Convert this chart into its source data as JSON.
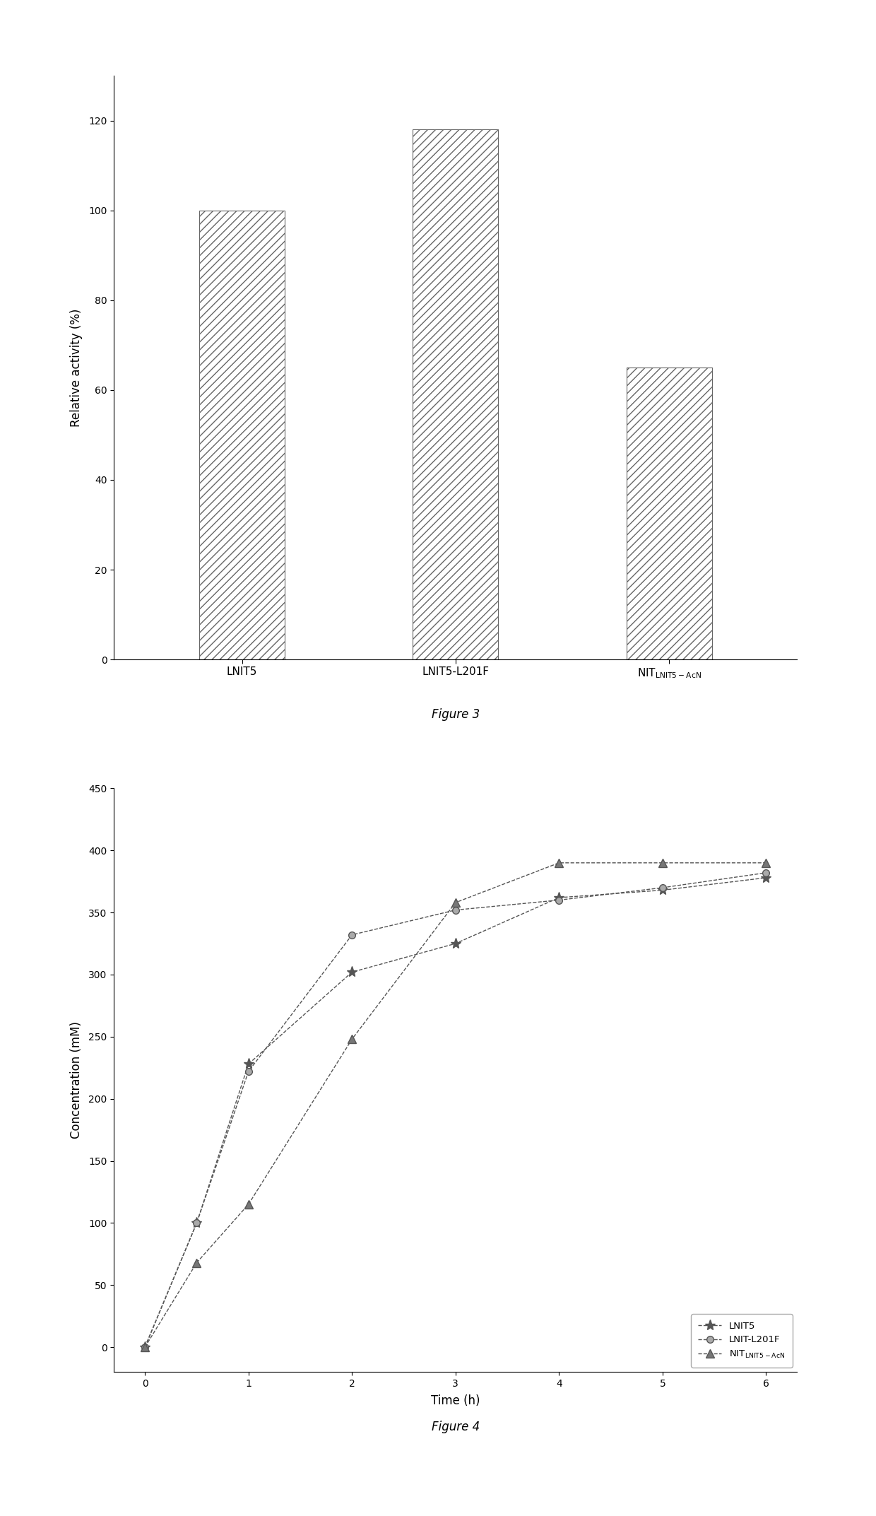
{
  "fig3": {
    "values": [
      100,
      118,
      65
    ],
    "ylabel": "Relative activity (%)",
    "ylim": [
      0,
      130
    ],
    "yticks": [
      0,
      20,
      40,
      60,
      80,
      100,
      120
    ],
    "bar_color": "#ffffff",
    "hatch": "///",
    "edge_color": "#666666",
    "figure_label": "Figure 3"
  },
  "fig4": {
    "time": [
      0,
      0.5,
      1,
      2,
      3,
      4,
      5,
      6
    ],
    "lnit5": [
      0,
      100,
      228,
      302,
      325,
      362,
      368,
      378
    ],
    "lnit_l201f": [
      0,
      100,
      222,
      332,
      352,
      360,
      370,
      382
    ],
    "nit_acn": [
      0,
      68,
      115,
      248,
      358,
      390,
      390,
      390
    ],
    "ylabel": "Concentration (mM)",
    "xlabel": "Time (h)",
    "ylim": [
      -20,
      450
    ],
    "yticks": [
      0,
      50,
      100,
      150,
      200,
      250,
      300,
      350,
      400,
      450
    ],
    "xticks": [
      0,
      1,
      2,
      3,
      4,
      5,
      6
    ],
    "legend_lnit5": "LNIT5",
    "legend_lnit_l201f": "LNIT-L201F",
    "figure_label": "Figure 4",
    "line_color": "#555555"
  }
}
